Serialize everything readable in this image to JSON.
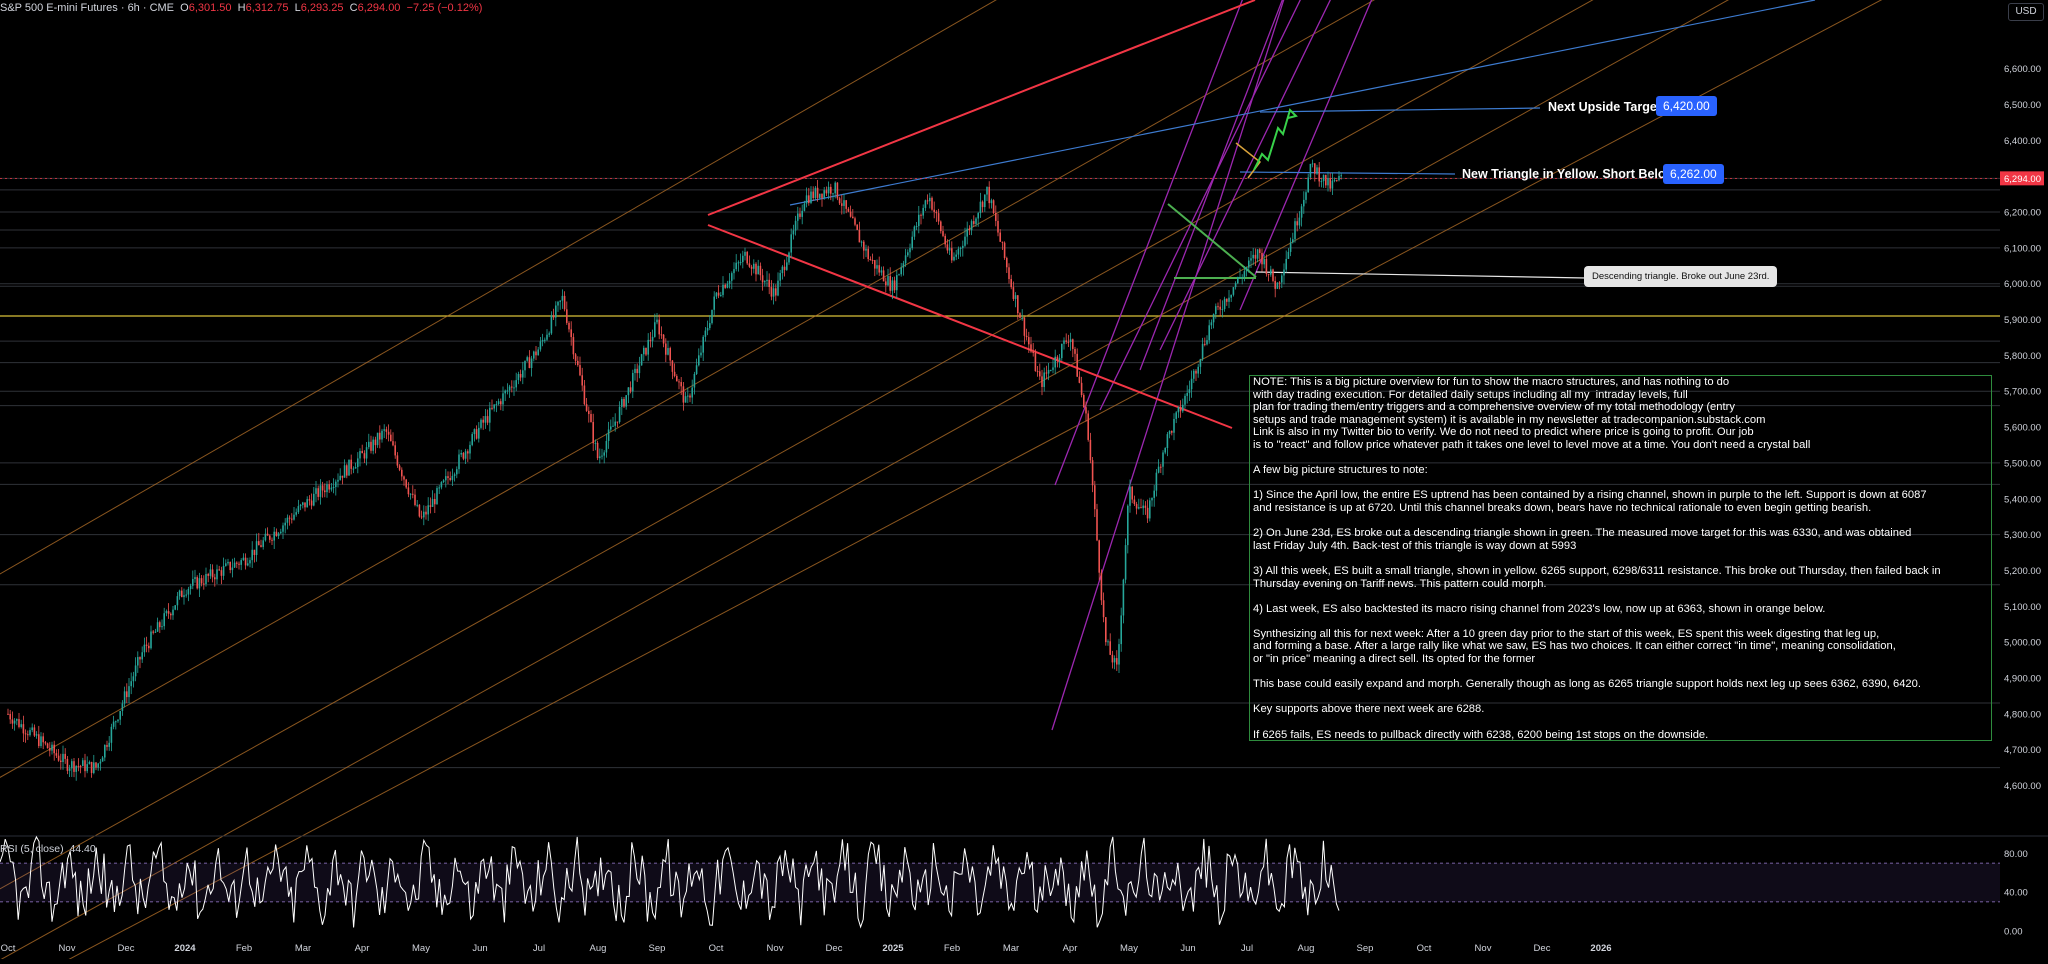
{
  "header": {
    "symbol": "S&P 500 E-mini Futures · 6h · CME",
    "open_label": "O",
    "open": "6,301.50",
    "high_label": "H",
    "high": "6,312.75",
    "low_label": "L",
    "low": "6,293.25",
    "close_label": "C",
    "close": "6,294.00",
    "change": "−7.25 (−0.12%)"
  },
  "currency": "USD",
  "colors": {
    "up": "#26a69a",
    "down": "#ef5350",
    "channel_purple": "#9c27b0",
    "channel_orange": "#b8732a",
    "red_lines": "#f23645",
    "green_triangle": "#4caf50",
    "yellow_line": "#d9c13a",
    "blue_lines": "#3d7bd0",
    "last_price": "#f23645"
  },
  "annotations": {
    "upside_label": "Next Upside Target",
    "upside_value": "6,420.00",
    "triangle_label": "New Triangle in Yellow. Short Below",
    "triangle_value": "6,262.00",
    "descending_callout": "Descending triangle. Broke out June 23rd."
  },
  "note": "NOTE: This is a big picture overview for fun to show the macro structures, and has nothing to do\nwith day trading execution. For detailed daily setups including all my  intraday levels, full\nplan for trading them/entry triggers and a comprehensive overview of my total methodology (entry\nsetups and trade management system) it is available in my newsletter at tradecompanion.substack.com\nLink is also in my Twitter bio to verify. We do not need to predict where price is going to profit. Our job\nis to \"react\" and follow price whatever path it takes one level to level move at a time. You don't need a crystal ball\n\nA few big picture structures to note:\n\n1) Since the April low, the entire ES uptrend has been contained by a rising channel, shown in purple to the left. Support is down at 6087\nand resistance is up at 6720. Until this channel breaks down, bears have no technical rationale to even begin getting bearish.\n\n2) On June 23d, ES broke out a descending triangle shown in green. The measured move target for this was 6330, and was obtained\nlast Friday July 4th. Back-test of this triangle is way down at 5993\n\n3) All this week, ES built a small triangle, shown in yellow. 6265 support, 6298/6311 resistance. This broke out Thursday, then failed back in\nThursday evening on Tariff news. This pattern could morph.\n\n4) Last week, ES also backtested its macro rising channel from 2023's low, now up at 6363, shown in orange below.\n\nSynthesizing all this for next week: After a 10 green day prior to the start of this week, ES spent this week digesting that leg up,\nand forming a base. After a large rally like what we saw, ES has two choices. It can either correct \"in time\", meaning consolidation,\nor \"in price\" meaning a direct sell. Its opted for the former\n\nThis base could easily expand and morph. Generally though as long as 6265 triangle support holds next leg up sees 6362, 6390, 6420.\n\nKey supports above there next week are 6288.\n\nIf 6265 fails, ES needs to pullback directly with 6238, 6200 being 1st stops on the downside.\n\nSpecific, precise instructions for entering trades in this range can be found in newsletter. This just a big overview to show structure.",
  "rsi": {
    "label": "RSI (5, close)",
    "value": "44.40",
    "ticks": [
      "80.00",
      "40.00",
      "0.00"
    ],
    "upper_band": 70,
    "lower_band": 30
  },
  "chart_data": {
    "type": "candlestick",
    "y_axis_ticks": [
      "6,600.00",
      "6,500.00",
      "6,400.00",
      "6,300.00",
      "6,200.00",
      "6,100.00",
      "6,000.00",
      "5,900.00",
      "5,800.00",
      "5,700.00",
      "5,600.00",
      "5,500.00",
      "5,400.00",
      "5,300.00",
      "5,200.00",
      "5,100.00",
      "5,000.00",
      "4,900.00",
      "4,800.00",
      "4,700.00",
      "4,600.00"
    ],
    "x_axis_ticks": [
      "Oct",
      "Nov",
      "Dec",
      "2024",
      "Feb",
      "Mar",
      "Apr",
      "May",
      "Jun",
      "Jul",
      "Aug",
      "Sep",
      "Oct",
      "Nov",
      "Dec",
      "2025",
      "Feb",
      "Mar",
      "Apr",
      "May",
      "Jun",
      "Jul",
      "Aug",
      "Sep",
      "Oct",
      "Nov",
      "Dec",
      "2026"
    ],
    "ylim": [
      4540,
      6680
    ],
    "last_price": 6294.0,
    "last_price_label": "6,294.00",
    "price_path": [
      {
        "x": 0.0,
        "y": 4800
      },
      {
        "x": 1.0,
        "y": 4660
      },
      {
        "x": 1.5,
        "y": 4650
      },
      {
        "x": 2.3,
        "y": 4980
      },
      {
        "x": 3.0,
        "y": 5150
      },
      {
        "x": 4.0,
        "y": 5230
      },
      {
        "x": 5.0,
        "y": 5380
      },
      {
        "x": 6.0,
        "y": 5520
      },
      {
        "x": 6.4,
        "y": 5590
      },
      {
        "x": 7.0,
        "y": 5340
      },
      {
        "x": 8.0,
        "y": 5600
      },
      {
        "x": 9.0,
        "y": 5820
      },
      {
        "x": 9.4,
        "y": 5960
      },
      {
        "x": 10.0,
        "y": 5510
      },
      {
        "x": 10.3,
        "y": 5620
      },
      {
        "x": 11.0,
        "y": 5890
      },
      {
        "x": 11.5,
        "y": 5660
      },
      {
        "x": 12.0,
        "y": 5970
      },
      {
        "x": 12.5,
        "y": 6080
      },
      {
        "x": 13.0,
        "y": 5970
      },
      {
        "x": 13.5,
        "y": 6240
      },
      {
        "x": 14.0,
        "y": 6270
      },
      {
        "x": 14.6,
        "y": 6070
      },
      {
        "x": 15.0,
        "y": 5990
      },
      {
        "x": 15.6,
        "y": 6250
      },
      {
        "x": 16.0,
        "y": 6060
      },
      {
        "x": 16.6,
        "y": 6260
      },
      {
        "x": 17.0,
        "y": 6000
      },
      {
        "x": 17.5,
        "y": 5720
      },
      {
        "x": 18.0,
        "y": 5860
      },
      {
        "x": 18.3,
        "y": 5600
      },
      {
        "x": 18.6,
        "y": 5000
      },
      {
        "x": 18.8,
        "y": 4920
      },
      {
        "x": 19.0,
        "y": 5420
      },
      {
        "x": 19.3,
        "y": 5350
      },
      {
        "x": 19.6,
        "y": 5550
      },
      {
        "x": 20.0,
        "y": 5700
      },
      {
        "x": 20.4,
        "y": 5900
      },
      {
        "x": 20.8,
        "y": 6000
      },
      {
        "x": 21.2,
        "y": 6090
      },
      {
        "x": 21.5,
        "y": 5990
      },
      {
        "x": 21.8,
        "y": 6150
      },
      {
        "x": 22.1,
        "y": 6330
      },
      {
        "x": 22.4,
        "y": 6270
      },
      {
        "x": 22.6,
        "y": 6294
      }
    ],
    "horizontal_levels": [
      6294,
      6262,
      6200,
      6150,
      6100,
      6000,
      5993,
      5910,
      5840,
      5780,
      5700,
      5660,
      5500,
      5440,
      5300,
      5160,
      4830,
      4650
    ]
  }
}
